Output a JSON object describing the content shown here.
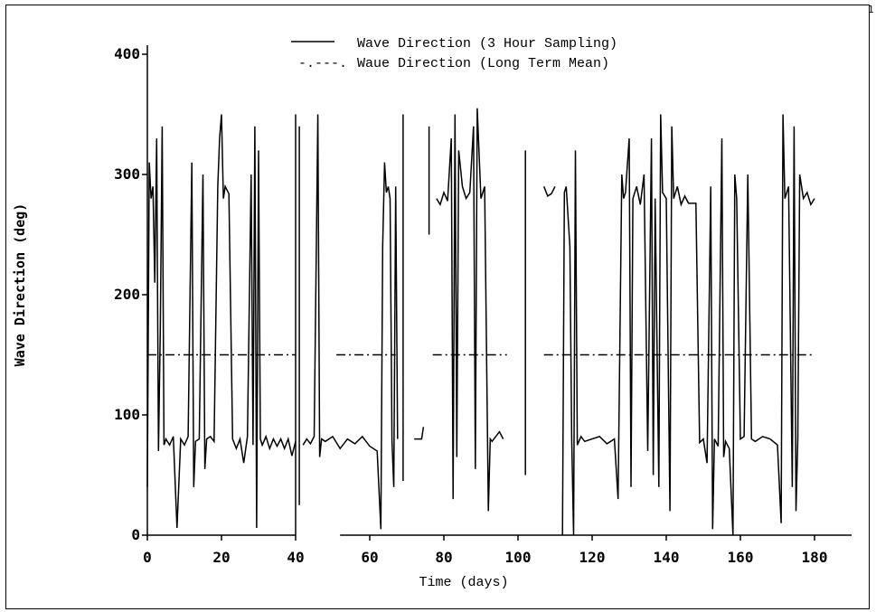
{
  "page_number": "1",
  "chart_data": {
    "type": "line",
    "title": "",
    "xlabel": "Time (days)",
    "ylabel": "Wave Direction (deg)",
    "xlim": [
      0,
      190
    ],
    "ylim": [
      0,
      400
    ],
    "xticks": [
      0,
      20,
      40,
      60,
      80,
      100,
      120,
      140,
      160,
      180
    ],
    "xtick_labels": [
      "0",
      "20",
      "40",
      "60",
      "80",
      "100",
      "120",
      "140",
      "160",
      "180"
    ],
    "yticks": [
      0,
      100,
      200,
      300,
      400
    ],
    "ytick_labels": [
      "0",
      "100",
      "200",
      "300",
      "400"
    ],
    "grid": false,
    "legend_position": "top-center",
    "series": [
      {
        "name": "Wave Direction (3 Hour Sampling)",
        "style": "solid",
        "color": "#000000",
        "segments": [
          [
            [
              0,
              40
            ],
            [
              0.5,
              310
            ],
            [
              1,
              280
            ],
            [
              1.5,
              290
            ],
            [
              2,
              210
            ],
            [
              2.5,
              330
            ],
            [
              3,
              70
            ],
            [
              3.5,
              170
            ],
            [
              4,
              340
            ],
            [
              4.5,
              75
            ],
            [
              5,
              80
            ],
            [
              6,
              75
            ],
            [
              7,
              82
            ],
            [
              8,
              6
            ],
            [
              9,
              80
            ],
            [
              10,
              75
            ],
            [
              11,
              82
            ],
            [
              12,
              310
            ],
            [
              12.5,
              40
            ],
            [
              13,
              78
            ],
            [
              14,
              80
            ],
            [
              15,
              300
            ],
            [
              15.5,
              55
            ],
            [
              16,
              80
            ],
            [
              17,
              82
            ],
            [
              18,
              78
            ],
            [
              19,
              290
            ],
            [
              19.5,
              330
            ],
            [
              20,
              350
            ],
            [
              20.5,
              280
            ],
            [
              21,
              290
            ],
            [
              22,
              284
            ],
            [
              22.5,
              180
            ],
            [
              23,
              80
            ],
            [
              24,
              72
            ],
            [
              25,
              80
            ],
            [
              26,
              60
            ],
            [
              27,
              82
            ],
            [
              28,
              300
            ],
            [
              28.5,
              75
            ],
            [
              29,
              340
            ],
            [
              29.5,
              6
            ],
            [
              30,
              320
            ],
            [
              30.5,
              80
            ],
            [
              31,
              75
            ],
            [
              32,
              82
            ],
            [
              33,
              72
            ],
            [
              34,
              80
            ],
            [
              35,
              74
            ],
            [
              36,
              80
            ],
            [
              37,
              72
            ],
            [
              38,
              80
            ],
            [
              39,
              66
            ],
            [
              40,
              78
            ]
          ],
          [
            [
              40,
              0
            ],
            [
              40,
              350
            ]
          ],
          [
            [
              41,
              25
            ],
            [
              41,
              340
            ]
          ],
          [
            [
              42,
              75
            ],
            [
              43,
              80
            ],
            [
              44,
              76
            ],
            [
              45,
              82
            ],
            [
              46,
              350
            ],
            [
              46.5,
              65
            ],
            [
              47,
              80
            ],
            [
              48,
              78
            ],
            [
              50,
              82
            ],
            [
              52,
              72
            ],
            [
              54,
              80
            ],
            [
              56,
              76
            ],
            [
              58,
              82
            ],
            [
              60,
              74
            ],
            [
              62,
              70
            ],
            [
              63,
              5
            ],
            [
              63.5,
              240
            ],
            [
              64,
              310
            ],
            [
              64.5,
              285
            ],
            [
              65,
              290
            ],
            [
              65.5,
              280
            ],
            [
              66,
              78
            ],
            [
              66.5,
              40
            ],
            [
              67,
              290
            ],
            [
              67.5,
              80
            ]
          ],
          [
            [
              69,
              45
            ],
            [
              69,
              350
            ]
          ],
          [
            [
              72,
              80
            ],
            [
              74,
              80
            ],
            [
              74.5,
              90
            ]
          ],
          [
            [
              76,
              250
            ],
            [
              76,
              340
            ]
          ],
          [
            [
              78,
              280
            ],
            [
              79,
              275
            ],
            [
              80,
              285
            ],
            [
              81,
              278
            ],
            [
              82,
              330
            ],
            [
              82.5,
              30
            ],
            [
              83,
              350
            ],
            [
              83.5,
              65
            ],
            [
              84,
              320
            ],
            [
              85,
              290
            ],
            [
              86,
              280
            ],
            [
              87,
              285
            ],
            [
              88,
              340
            ],
            [
              88.5,
              55
            ],
            [
              89,
              355
            ],
            [
              90,
              280
            ],
            [
              91,
              290
            ],
            [
              92,
              20
            ],
            [
              92.5,
              80
            ],
            [
              93,
              78
            ],
            [
              94,
              82
            ],
            [
              95,
              86
            ],
            [
              96,
              80
            ]
          ],
          [
            [
              102,
              50
            ],
            [
              102,
              320
            ]
          ],
          [
            [
              107,
              290
            ],
            [
              108,
              282
            ],
            [
              109,
              284
            ],
            [
              110,
              290
            ]
          ],
          [
            [
              112,
              0
            ],
            [
              112.5,
              285
            ],
            [
              113,
              290
            ],
            [
              114,
              240
            ],
            [
              114.5,
              80
            ],
            [
              115,
              0
            ],
            [
              115.5,
              320
            ],
            [
              116,
              75
            ],
            [
              117,
              82
            ],
            [
              118,
              78
            ],
            [
              120,
              80
            ],
            [
              122,
              82
            ],
            [
              124,
              76
            ],
            [
              126,
              80
            ],
            [
              127,
              30
            ],
            [
              128,
              300
            ],
            [
              128.5,
              280
            ],
            [
              129,
              285
            ],
            [
              130,
              330
            ],
            [
              130.5,
              40
            ],
            [
              131,
              280
            ],
            [
              132,
              290
            ],
            [
              133,
              275
            ],
            [
              134,
              300
            ],
            [
              135,
              70
            ],
            [
              136,
              330
            ],
            [
              136.5,
              50
            ],
            [
              137,
              280
            ],
            [
              138,
              40
            ],
            [
              138.5,
              350
            ],
            [
              139,
              285
            ],
            [
              140,
              280
            ],
            [
              141,
              20
            ],
            [
              141.5,
              340
            ],
            [
              142,
              280
            ],
            [
              143,
              290
            ],
            [
              144,
              275
            ],
            [
              145,
              282
            ],
            [
              146,
              276
            ],
            [
              148,
              276
            ],
            [
              149,
              77
            ],
            [
              150,
              80
            ],
            [
              151,
              60
            ],
            [
              152,
              290
            ],
            [
              152.5,
              5
            ],
            [
              153,
              80
            ],
            [
              154,
              74
            ],
            [
              155,
              330
            ],
            [
              155.5,
              65
            ],
            [
              156,
              78
            ],
            [
              157,
              72
            ],
            [
              158,
              0
            ],
            [
              158.5,
              300
            ],
            [
              159,
              280
            ],
            [
              160,
              80
            ],
            [
              161,
              82
            ],
            [
              162,
              300
            ],
            [
              163,
              80
            ],
            [
              164,
              78
            ],
            [
              166,
              82
            ],
            [
              168,
              80
            ],
            [
              170,
              75
            ],
            [
              171,
              10
            ],
            [
              171.5,
              350
            ],
            [
              172,
              280
            ],
            [
              173,
              290
            ],
            [
              174,
              40
            ],
            [
              174.5,
              340
            ],
            [
              175,
              20
            ],
            [
              175.5,
              80
            ],
            [
              176,
              300
            ],
            [
              177,
              280
            ],
            [
              178,
              285
            ],
            [
              179,
              275
            ],
            [
              180,
              280
            ]
          ]
        ]
      },
      {
        "name": "Waue Direction (Long Term Mean)",
        "style": "dash-dot",
        "color": "#000000",
        "segments": [
          [
            [
              0,
              150
            ],
            [
              40,
              150
            ]
          ],
          [
            [
              51,
              150
            ],
            [
              67,
              150
            ]
          ],
          [
            [
              77,
              150
            ],
            [
              97,
              150
            ]
          ],
          [
            [
              107,
              150
            ],
            [
              180,
              150
            ]
          ]
        ]
      }
    ]
  }
}
